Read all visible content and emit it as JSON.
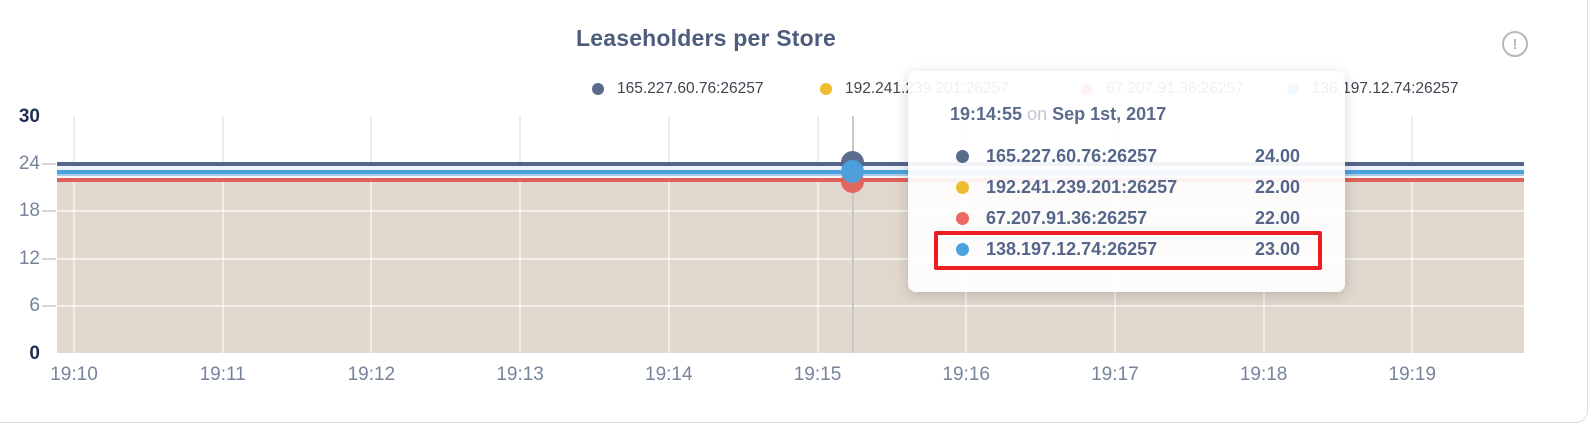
{
  "card": {
    "title": "Leaseholders per Store"
  },
  "info_icon": {
    "glyph": "!"
  },
  "legend": {
    "items": [
      {
        "label": "165.227.60.76:26257",
        "color": "#5b6b8c"
      },
      {
        "label": "192.241.239.201:26257",
        "color": "#eebd31"
      },
      {
        "label": "67.207.91.36:26257",
        "color": "#ec6a61"
      },
      {
        "label": "138.197.12.74:26257",
        "color": "#4aa2de"
      }
    ]
  },
  "chart_data": {
    "type": "area",
    "title": "Leaseholders per Store",
    "x": [
      "19:10",
      "19:11",
      "19:12",
      "19:13",
      "19:14",
      "19:15",
      "19:16",
      "19:17",
      "19:18",
      "19:19"
    ],
    "y_ticks": [
      30,
      24,
      18,
      12,
      6,
      0
    ],
    "ylim": [
      0,
      30
    ],
    "grid": true,
    "legend_position": "top",
    "series": [
      {
        "name": "165.227.60.76:26257",
        "color": "#54658a",
        "values": [
          24,
          24,
          24,
          24,
          24,
          24,
          24,
          24,
          24,
          24
        ]
      },
      {
        "name": "192.241.239.201:26257",
        "color": "#eebd31",
        "values": [
          22,
          22,
          22,
          22,
          22,
          22,
          22,
          22,
          22,
          22
        ]
      },
      {
        "name": "67.207.91.36:26257",
        "color": "#e0615a",
        "values": [
          22,
          22,
          22,
          22,
          22,
          22,
          22,
          22,
          22,
          22
        ]
      },
      {
        "name": "138.197.12.74:26257",
        "color": "#4aa2de",
        "values": [
          23,
          23,
          23,
          23,
          23,
          23,
          23,
          23,
          23,
          23
        ]
      }
    ],
    "hover_point": {
      "time": "19:14:55",
      "values": [
        24,
        22,
        22,
        23
      ]
    }
  },
  "tooltip": {
    "time": "19:14:55",
    "conjunction": "on",
    "date": "Sep 1st, 2017",
    "rows": [
      {
        "name": "165.227.60.76:26257",
        "value": "24.00",
        "color": "#5b6b8c",
        "highlighted": false
      },
      {
        "name": "192.241.239.201:26257",
        "value": "22.00",
        "color": "#eebd31",
        "highlighted": false
      },
      {
        "name": "67.207.91.36:26257",
        "value": "22.00",
        "color": "#ec6a61",
        "highlighted": false
      },
      {
        "name": "138.197.12.74:26257",
        "value": "23.00",
        "color": "#4aa2de",
        "highlighted": true
      }
    ]
  }
}
